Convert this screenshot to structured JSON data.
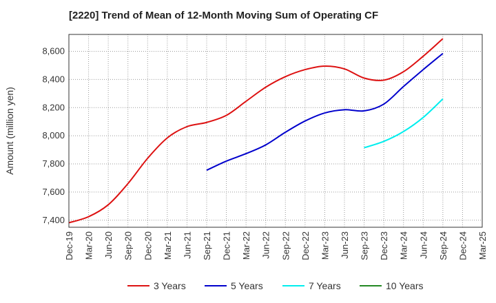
{
  "chart_data": {
    "type": "line",
    "title": "[2220]  Trend of Mean of 12-Month Moving Sum of Operating CF",
    "xlabel": "",
    "ylabel": "Amount (million yen)",
    "ylim": [
      7350,
      8720
    ],
    "yticks": [
      7400,
      7600,
      7800,
      8000,
      8200,
      8400,
      8600
    ],
    "ytick_labels": [
      "7,400",
      "7,600",
      "7,800",
      "8,000",
      "8,200",
      "8,400",
      "8,600"
    ],
    "x_categories": [
      "Dec-19",
      "Mar-20",
      "Jun-20",
      "Sep-20",
      "Dec-20",
      "Mar-21",
      "Jun-21",
      "Sep-21",
      "Dec-21",
      "Mar-22",
      "Jun-22",
      "Sep-22",
      "Dec-22",
      "Mar-23",
      "Jun-23",
      "Sep-23",
      "Dec-23",
      "Mar-24",
      "Jun-24",
      "Sep-24",
      "Dec-24",
      "Mar-25"
    ],
    "grid": true,
    "legend_position": "bottom",
    "series": [
      {
        "name": "3 Years",
        "color": "#dd1111",
        "points": [
          [
            0,
            7382
          ],
          [
            1,
            7425
          ],
          [
            2,
            7510
          ],
          [
            3,
            7660
          ],
          [
            4,
            7840
          ],
          [
            5,
            7985
          ],
          [
            6,
            8065
          ],
          [
            7,
            8095
          ],
          [
            8,
            8145
          ],
          [
            9,
            8245
          ],
          [
            10,
            8345
          ],
          [
            11,
            8420
          ],
          [
            12,
            8470
          ],
          [
            13,
            8495
          ],
          [
            14,
            8475
          ],
          [
            15,
            8410
          ],
          [
            16,
            8395
          ],
          [
            17,
            8455
          ],
          [
            18,
            8565
          ],
          [
            19,
            8690
          ]
        ]
      },
      {
        "name": "5 Years",
        "color": "#0000cc",
        "points": [
          [
            7,
            7755
          ],
          [
            8,
            7820
          ],
          [
            9,
            7873
          ],
          [
            10,
            7935
          ],
          [
            11,
            8025
          ],
          [
            12,
            8105
          ],
          [
            13,
            8162
          ],
          [
            14,
            8185
          ],
          [
            15,
            8177
          ],
          [
            16,
            8225
          ],
          [
            17,
            8350
          ],
          [
            18,
            8470
          ],
          [
            19,
            8585
          ]
        ]
      },
      {
        "name": "7 Years",
        "color": "#00eeee",
        "points": [
          [
            15,
            7915
          ],
          [
            16,
            7960
          ],
          [
            17,
            8030
          ],
          [
            18,
            8130
          ],
          [
            19,
            8262
          ]
        ]
      },
      {
        "name": "10 Years",
        "color": "#228822",
        "points": []
      }
    ]
  }
}
